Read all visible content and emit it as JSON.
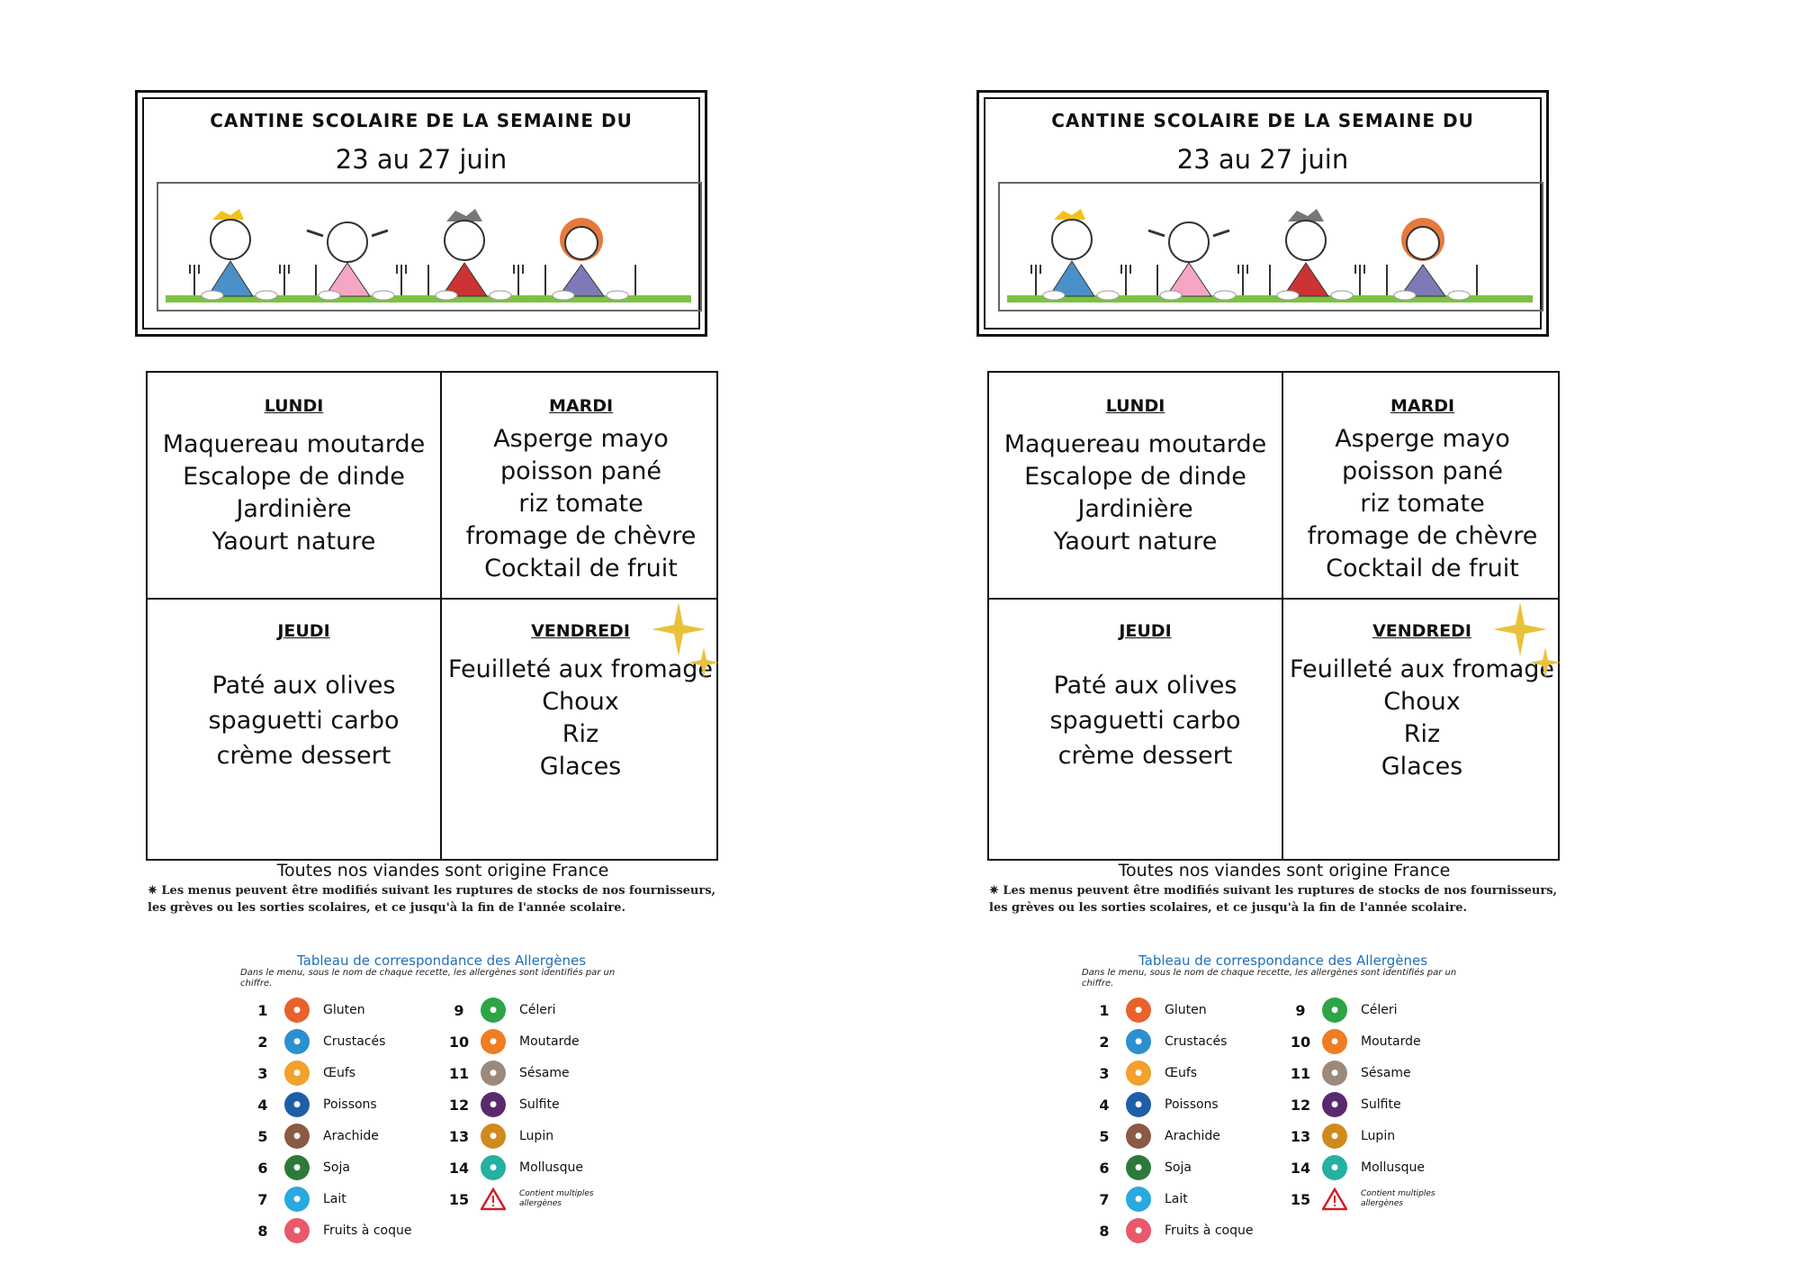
{
  "header": {
    "title": "CANTINE SCOLAIRE DE LA SEMAINE DU",
    "date_left": "23 au 27  juin",
    "date_right": "23 au 27 juin"
  },
  "menu": {
    "lundi": {
      "day": "LUNDI",
      "items": [
        "Maquereau moutarde",
        "Escalope de dinde",
        "Jardinière",
        "Yaourt nature"
      ]
    },
    "mardi": {
      "day": "MARDI",
      "items": [
        "Asperge mayo",
        "poisson pané",
        "riz tomate",
        "fromage de chèvre",
        "Cocktail de fruit"
      ]
    },
    "jeudi": {
      "day": "JEUDI",
      "items": [
        "Paté aux olives",
        "spaguetti carbo",
        "crème dessert"
      ]
    },
    "vendredi": {
      "day": "VENDREDI",
      "items": [
        "Feuilleté aux fromage",
        "Choux",
        "Riz",
        "Glaces"
      ]
    }
  },
  "notes": {
    "origin": "Toutes nos viandes sont origine France",
    "disclaimer": "✷ Les menus peuvent être modifiés suivant les ruptures de stocks de nos fournisseurs, les grèves ou les sorties scolaires, et ce jusqu'à la fin de l'année scolaire."
  },
  "allergens": {
    "title": "Tableau de correspondance des Allergènes",
    "description": "Dans le menu, sous le nom de chaque recette, les allergènes sont identifiés par un chiffre.",
    "items": [
      {
        "num": "1",
        "label": "Gluten",
        "color": "#e8622c",
        "icon": "wheat-icon"
      },
      {
        "num": "2",
        "label": "Crustacés",
        "color": "#2b8fd0",
        "icon": "crab-icon"
      },
      {
        "num": "3",
        "label": "Œufs",
        "color": "#f2a02e",
        "icon": "egg-icon"
      },
      {
        "num": "4",
        "label": "Poissons",
        "color": "#1e5ea8",
        "icon": "fish-icon"
      },
      {
        "num": "5",
        "label": "Arachide",
        "color": "#8a5a44",
        "icon": "peanut-icon"
      },
      {
        "num": "6",
        "label": "Soja",
        "color": "#2c7a3a",
        "icon": "soy-icon"
      },
      {
        "num": "7",
        "label": "Lait",
        "color": "#29a9e0",
        "icon": "milk-icon"
      },
      {
        "num": "8",
        "label": "Fruits à coque",
        "color": "#e8596a",
        "icon": "nut-icon"
      },
      {
        "num": "9",
        "label": "Céleri",
        "color": "#2ea447",
        "icon": "celery-icon"
      },
      {
        "num": "10",
        "label": "Moutarde",
        "color": "#ef7d23",
        "icon": "mustard-icon"
      },
      {
        "num": "11",
        "label": "Sésame",
        "color": "#9b8a7c",
        "icon": "sesame-icon"
      },
      {
        "num": "12",
        "label": "Sulfite",
        "color": "#5a2a6e",
        "icon": "sulfite-icon"
      },
      {
        "num": "13",
        "label": "Lupin",
        "color": "#d08a1e",
        "icon": "lupin-icon"
      },
      {
        "num": "14",
        "label": "Mollusque",
        "color": "#25b0a0",
        "icon": "shell-icon"
      },
      {
        "num": "15",
        "label": "Contient multiples allergènes",
        "color": "#d0202a",
        "icon": "warning-icon"
      }
    ]
  }
}
